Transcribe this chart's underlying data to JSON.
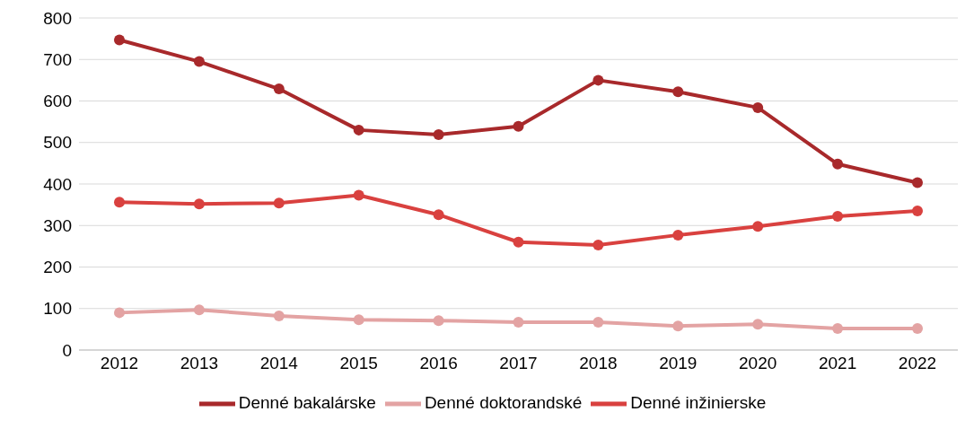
{
  "chart_data": {
    "type": "line",
    "categories": [
      "2012",
      "2013",
      "2014",
      "2015",
      "2016",
      "2017",
      "2018",
      "2019",
      "2020",
      "2021",
      "2022"
    ],
    "series": [
      {
        "name": "Denné bakalárske",
        "color": "#a8292b",
        "values": [
          747,
          695,
          629,
          530,
          519,
          539,
          650,
          622,
          584,
          448,
          403
        ]
      },
      {
        "name": "Denné inžinierske",
        "color": "#d9413f",
        "values": [
          356,
          352,
          354,
          373,
          326,
          260,
          253,
          277,
          298,
          322,
          335
        ]
      },
      {
        "name": "Denné doktorandské",
        "color": "#e3a3a3",
        "values": [
          90,
          97,
          82,
          73,
          71,
          67,
          67,
          58,
          62,
          52,
          52
        ]
      }
    ],
    "ylim": [
      0,
      800
    ],
    "yticks": [
      0,
      100,
      200,
      300,
      400,
      500,
      600,
      700,
      800
    ],
    "grid": "y",
    "legend": "bottom",
    "marker": "circle",
    "line_style": "solid"
  }
}
